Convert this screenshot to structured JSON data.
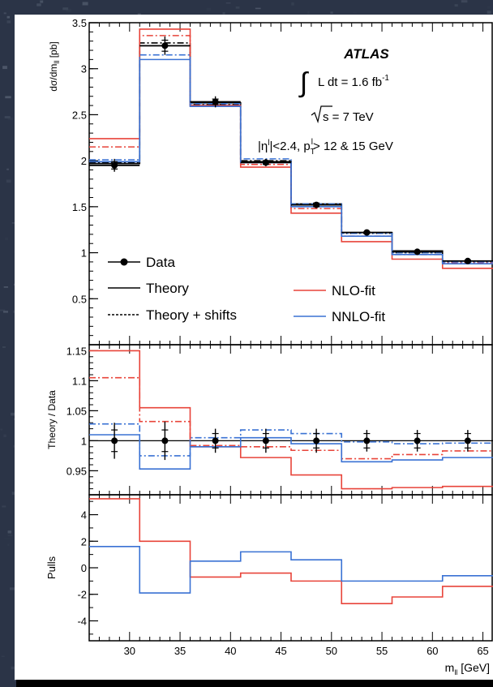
{
  "chart_data": [
    {
      "panel": "main",
      "type": "line",
      "ylabel": "dσ/dm_ll [pb]",
      "ylim": [
        0,
        3.5
      ],
      "xlim": [
        26,
        66
      ],
      "x_edges": [
        26,
        31,
        36,
        41,
        46,
        51,
        56,
        61,
        66
      ],
      "ticks": [
        "0.5",
        "1",
        "1.5",
        "2",
        "2.5",
        "3",
        "3.5"
      ],
      "data_points": {
        "name": "Data",
        "x": [
          28.5,
          33.5,
          38.5,
          43.5,
          48.5,
          53.5,
          58.5,
          63.5
        ],
        "y": [
          1.95,
          3.25,
          2.64,
          1.98,
          1.52,
          1.22,
          1.01,
          0.91
        ],
        "err_inner": [
          0.04,
          0.06,
          0.03,
          0.02,
          0.02,
          0.01,
          0.01,
          0.01
        ],
        "err_total": [
          0.07,
          0.1,
          0.06,
          0.04,
          0.03,
          0.02,
          0.02,
          0.02
        ]
      },
      "series": [
        {
          "name": "Theory (black)",
          "style": "solid",
          "color": "#000000",
          "values": [
            1.97,
            3.25,
            2.63,
            1.99,
            1.53,
            1.22,
            1.02,
            0.91
          ]
        },
        {
          "name": "Theory + shifts (black)",
          "style": "dashed",
          "color": "#000000",
          "values": [
            1.98,
            3.28,
            2.61,
            2.0,
            1.52,
            1.21,
            1.0,
            0.9
          ]
        },
        {
          "name": "NLO-fit",
          "style": "solid",
          "color": "#e8443a",
          "values": [
            2.24,
            3.43,
            2.6,
            1.93,
            1.43,
            1.12,
            0.93,
            0.83
          ]
        },
        {
          "name": "NLO-fit shifts",
          "style": "dashed",
          "color": "#e8443a",
          "values": [
            2.15,
            3.36,
            2.59,
            1.96,
            1.48,
            1.18,
            0.98,
            0.89
          ]
        },
        {
          "name": "NNLO-fit",
          "style": "solid",
          "color": "#3a72d4",
          "values": [
            1.99,
            3.1,
            2.59,
            1.98,
            1.5,
            1.18,
            0.98,
            0.88
          ]
        },
        {
          "name": "NNLO-fit shifts",
          "style": "dashed",
          "color": "#3a72d4",
          "values": [
            2.01,
            3.15,
            2.62,
            2.02,
            1.53,
            1.21,
            1.0,
            0.9
          ]
        }
      ],
      "annotations": {
        "experiment": "ATLAS",
        "lumi_prefix": "L dt = 1.6 fb",
        "lumi_sup": "-1",
        "energy": "s = 7 TeV",
        "cuts_1": "|η",
        "cuts_sup": "l",
        "cuts_2": "|<2.4, p",
        "cuts_sub": "T",
        "cuts_sup2": "l",
        "cuts_3": "> 12 & 15 GeV"
      },
      "legend": {
        "data": "Data",
        "theory": "Theory",
        "theory_shifts": "Theory + shifts",
        "nlo": "NLO-fit",
        "nnlo": "NNLO-fit"
      }
    },
    {
      "panel": "ratio",
      "type": "line",
      "ylabel": "Theory / Data",
      "ylim": [
        0.91,
        1.16
      ],
      "ticks": [
        "0.95",
        "1",
        "1.05",
        "1.1",
        "1.15"
      ],
      "data_points": {
        "x": [
          28.5,
          33.5,
          38.5,
          43.5,
          48.5,
          53.5,
          58.5,
          63.5
        ],
        "y": [
          1.0,
          1.0,
          1.0,
          1.0,
          1.0,
          1.0,
          1.0,
          1.0
        ],
        "err_inner": [
          0.018,
          0.018,
          0.012,
          0.012,
          0.012,
          0.012,
          0.012,
          0.012
        ],
        "err_total": [
          0.03,
          0.032,
          0.02,
          0.02,
          0.02,
          0.018,
          0.018,
          0.018
        ]
      },
      "series": [
        {
          "name": "NLO-fit",
          "style": "solid",
          "color": "#e8443a",
          "values": [
            1.15,
            1.055,
            0.99,
            0.972,
            0.943,
            0.92,
            0.922,
            0.924
          ]
        },
        {
          "name": "NLO-fit shifts",
          "style": "dashed",
          "color": "#e8443a",
          "values": [
            1.105,
            1.032,
            0.992,
            0.99,
            0.984,
            0.97,
            0.977,
            0.983
          ]
        },
        {
          "name": "NNLO-fit",
          "style": "solid",
          "color": "#3a72d4",
          "values": [
            1.01,
            0.953,
            0.99,
            1.005,
            0.995,
            0.965,
            0.968,
            0.972
          ]
        },
        {
          "name": "NNLO-fit shifts",
          "style": "dashed",
          "color": "#3a72d4",
          "values": [
            1.028,
            0.975,
            1.005,
            1.018,
            1.012,
            0.998,
            0.995,
            0.996
          ]
        }
      ]
    },
    {
      "panel": "pulls",
      "type": "line",
      "ylabel": "Pulls",
      "ylim": [
        -5.5,
        5.5
      ],
      "ticks": [
        "-4",
        "-2",
        "0",
        "2",
        "4"
      ],
      "xlabel": "m_ll [GeV]",
      "xticks": [
        "30",
        "35",
        "40",
        "45",
        "50",
        "55",
        "60",
        "65"
      ],
      "series": [
        {
          "name": "NLO-fit",
          "style": "solid",
          "color": "#e8443a",
          "values": [
            5.2,
            2.0,
            -0.7,
            -0.4,
            -1.0,
            -2.7,
            -2.2,
            -1.4
          ]
        },
        {
          "name": "NNLO-fit",
          "style": "solid",
          "color": "#3a72d4",
          "values": [
            1.6,
            -1.9,
            0.5,
            1.2,
            0.6,
            -1.0,
            -1.0,
            -0.6
          ]
        }
      ]
    }
  ]
}
